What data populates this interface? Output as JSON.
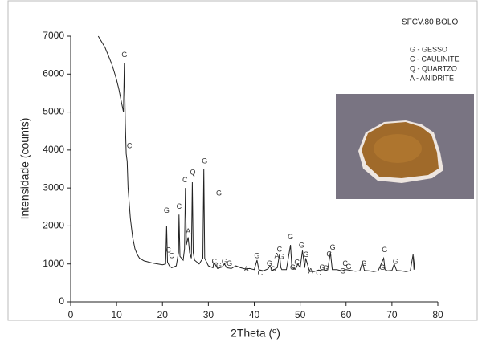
{
  "chart_data": {
    "type": "line",
    "sample_label": "SFCV.80 BOLO",
    "key": [
      "G - GESSO",
      "C - CAULINITE",
      "Q - QUARTZO",
      "A - ANIDRITE"
    ],
    "x_label": "2Theta (º)",
    "y_label": "Intensidade (counts)",
    "color": "#222222",
    "xlim": [
      0,
      80
    ],
    "ylim": [
      0,
      7000
    ],
    "xticks": [
      0,
      10,
      20,
      30,
      40,
      50,
      60,
      70,
      80
    ],
    "yticks": [
      0,
      1000,
      2000,
      3000,
      4000,
      5000,
      6000,
      7000
    ],
    "x": [
      6.0,
      6.5,
      7,
      7.5,
      8,
      8.5,
      9,
      9.5,
      10,
      10.5,
      11,
      11.5,
      11.7,
      11.9,
      12.1,
      12.3,
      12.5,
      13,
      13.5,
      14,
      14.5,
      15,
      16,
      17,
      18,
      19,
      20,
      20.7,
      20.9,
      21.1,
      21.5,
      22,
      23,
      23.5,
      23.6,
      23.8,
      24.5,
      24.8,
      25,
      25.2,
      25.6,
      25.9,
      26.3,
      26.5,
      26.7,
      27,
      28,
      28.8,
      29,
      29.2,
      30,
      31,
      31.2,
      32,
      33,
      33.5,
      34,
      35,
      36,
      37,
      38,
      39,
      40,
      40.6,
      41,
      42,
      43,
      43.4,
      44,
      45,
      45.5,
      45.8,
      46,
      47,
      47.9,
      48.2,
      49,
      49.5,
      50,
      50.5,
      51,
      51.2,
      52,
      53,
      54,
      55,
      56,
      56.6,
      57,
      58,
      59,
      60,
      61,
      62,
      63,
      63.6,
      64,
      65,
      66,
      67,
      68.2,
      68.5,
      69,
      70,
      70.5,
      71,
      72,
      73,
      74,
      74.6,
      74.8,
      75
    ],
    "values": [
      7000,
      6900,
      6800,
      6700,
      6550,
      6400,
      6250,
      6050,
      5850,
      5600,
      5300,
      5000,
      6300,
      4700,
      3900,
      3700,
      3000,
      2200,
      1700,
      1400,
      1250,
      1150,
      1080,
      1050,
      1020,
      1000,
      980,
      1000,
      2000,
      1050,
      950,
      900,
      950,
      1300,
      2300,
      1200,
      1100,
      1400,
      3000,
      1500,
      1700,
      1300,
      1150,
      3150,
      1300,
      1100,
      1000,
      1150,
      3500,
      1150,
      950,
      900,
      1050,
      880,
      920,
      1000,
      900,
      880,
      950,
      900,
      870,
      880,
      850,
      1100,
      850,
      820,
      870,
      950,
      830,
      900,
      1250,
      900,
      850,
      850,
      1500,
      900,
      860,
      1000,
      900,
      1350,
      900,
      1150,
      820,
      800,
      840,
      820,
      850,
      1300,
      850,
      850,
      820,
      850,
      830,
      810,
      820,
      1050,
      830,
      820,
      800,
      820,
      1150,
      850,
      820,
      830,
      1000,
      830,
      820,
      800,
      820,
      1250,
      850,
      1200
    ],
    "annotations": [
      {
        "text": "G",
        "x": 11.7,
        "y": 6500
      },
      {
        "text": "C",
        "x": 12.8,
        "y": 4100
      },
      {
        "text": "G",
        "x": 20.9,
        "y": 2400
      },
      {
        "text": "C",
        "x": 21.3,
        "y": 1350
      },
      {
        "text": "C",
        "x": 22.0,
        "y": 1200
      },
      {
        "text": "C",
        "x": 23.6,
        "y": 2500
      },
      {
        "text": "C",
        "x": 24.9,
        "y": 3200
      },
      {
        "text": "A",
        "x": 25.6,
        "y": 1850
      },
      {
        "text": "Q",
        "x": 26.6,
        "y": 3400
      },
      {
        "text": "G",
        "x": 29.2,
        "y": 3700
      },
      {
        "text": "G",
        "x": 32.3,
        "y": 2850
      },
      {
        "text": "C",
        "x": 31.3,
        "y": 1050
      },
      {
        "text": "G",
        "x": 32.3,
        "y": 950
      },
      {
        "text": "G",
        "x": 33.5,
        "y": 1050
      },
      {
        "text": "G",
        "x": 34.6,
        "y": 1000
      },
      {
        "text": "A",
        "x": 38.3,
        "y": 850
      },
      {
        "text": "G",
        "x": 40.6,
        "y": 1200
      },
      {
        "text": "C",
        "x": 41.3,
        "y": 750
      },
      {
        "text": "G",
        "x": 43.3,
        "y": 1000
      },
      {
        "text": "G",
        "x": 44.1,
        "y": 850
      },
      {
        "text": "A",
        "x": 44.9,
        "y": 1200
      },
      {
        "text": "C",
        "x": 45.5,
        "y": 1370
      },
      {
        "text": "G",
        "x": 45.9,
        "y": 1180
      },
      {
        "text": "G",
        "x": 47.9,
        "y": 1700
      },
      {
        "text": "G",
        "x": 48.4,
        "y": 900
      },
      {
        "text": "C",
        "x": 49.3,
        "y": 1030
      },
      {
        "text": "G",
        "x": 50.3,
        "y": 1480
      },
      {
        "text": "G",
        "x": 51.3,
        "y": 1230
      },
      {
        "text": "A",
        "x": 52.3,
        "y": 800
      },
      {
        "text": "C",
        "x": 54.0,
        "y": 750
      },
      {
        "text": "G",
        "x": 54.8,
        "y": 900
      },
      {
        "text": "G",
        "x": 55.6,
        "y": 870
      },
      {
        "text": "C",
        "x": 56.3,
        "y": 1250
      },
      {
        "text": "G",
        "x": 57.1,
        "y": 1430
      },
      {
        "text": "G",
        "x": 59.3,
        "y": 800
      },
      {
        "text": "C",
        "x": 59.8,
        "y": 1000
      },
      {
        "text": "G",
        "x": 60.6,
        "y": 920
      },
      {
        "text": "G",
        "x": 63.9,
        "y": 1000
      },
      {
        "text": "G",
        "x": 67.9,
        "y": 900
      },
      {
        "text": "G",
        "x": 68.4,
        "y": 1360
      },
      {
        "text": "G",
        "x": 70.8,
        "y": 1060
      }
    ]
  }
}
